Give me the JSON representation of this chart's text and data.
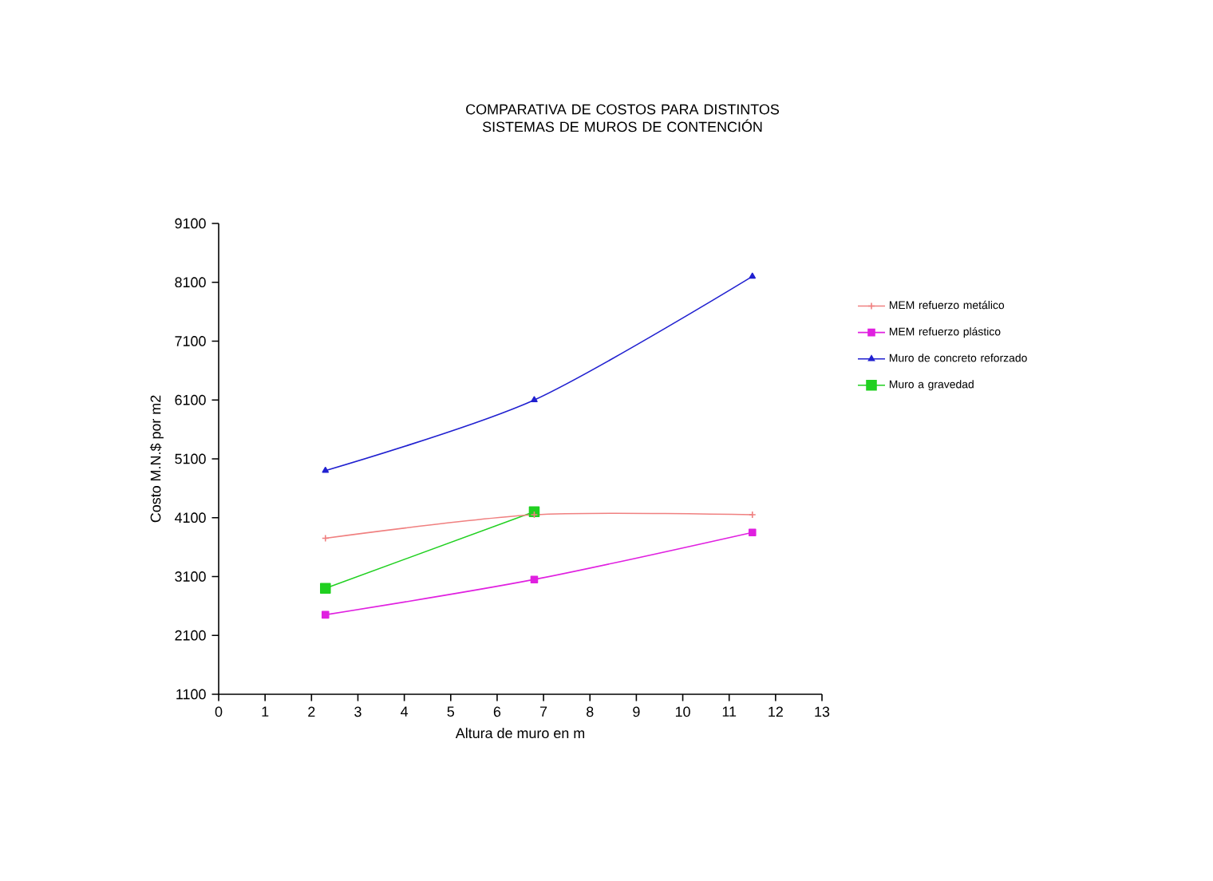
{
  "chart_data": {
    "type": "line",
    "title": "COMPARATIVA DE COSTOS PARA DISTINTOS SISTEMAS DE MUROS DE CONTENCIÓN",
    "xlabel": "Altura de muro en m",
    "ylabel": "Costo M.N.$ por m2",
    "xlim": [
      0,
      13
    ],
    "xticks": [
      0,
      1,
      2,
      3,
      4,
      5,
      6,
      7,
      8,
      9,
      10,
      11,
      12,
      13
    ],
    "ylim": [
      1100,
      9100
    ],
    "yticks": [
      1100,
      2100,
      3100,
      4100,
      5100,
      6100,
      7100,
      8100,
      9100
    ],
    "grid": false,
    "legend": "right",
    "series": [
      {
        "name": "MEM refuerzo metálico",
        "color": "#f08080",
        "marker": "cross",
        "x": [
          2.3,
          6.8,
          11.5
        ],
        "values": [
          3750,
          4150,
          4150
        ]
      },
      {
        "name": "MEM refuerzo plástico",
        "color": "#e020e0",
        "marker": "square",
        "x": [
          2.3,
          6.8,
          11.5
        ],
        "values": [
          2450,
          3050,
          3850
        ]
      },
      {
        "name": "Muro de concreto reforzado",
        "color": "#2020d0",
        "marker": "triangle",
        "x": [
          2.3,
          6.8,
          11.5
        ],
        "values": [
          4900,
          6100,
          8200
        ]
      },
      {
        "name": "Muro a gravedad",
        "color": "#20d020",
        "marker": "square",
        "x": [
          2.3,
          6.8
        ],
        "values": [
          2900,
          4200
        ]
      }
    ]
  }
}
